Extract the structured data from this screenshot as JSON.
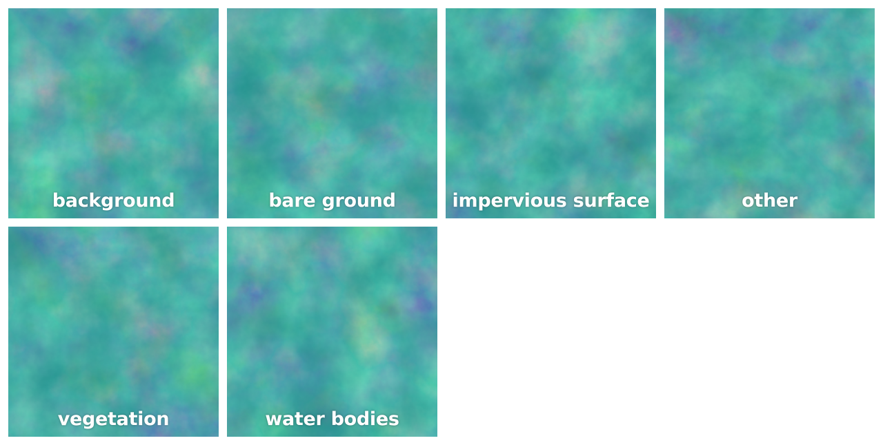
{
  "colormap": [
    "#440154",
    "#3b528b",
    "#21918c",
    "#5ec962",
    "#fde725"
  ],
  "tiles": [
    {
      "label": "background",
      "seed": 3
    },
    {
      "label": "bare ground",
      "seed": 11
    },
    {
      "label": "impervious surface",
      "seed": 19
    },
    {
      "label": "other",
      "seed": 27
    },
    {
      "label": "vegetation",
      "seed": 41
    },
    {
      "label": "water bodies",
      "seed": 53
    }
  ]
}
